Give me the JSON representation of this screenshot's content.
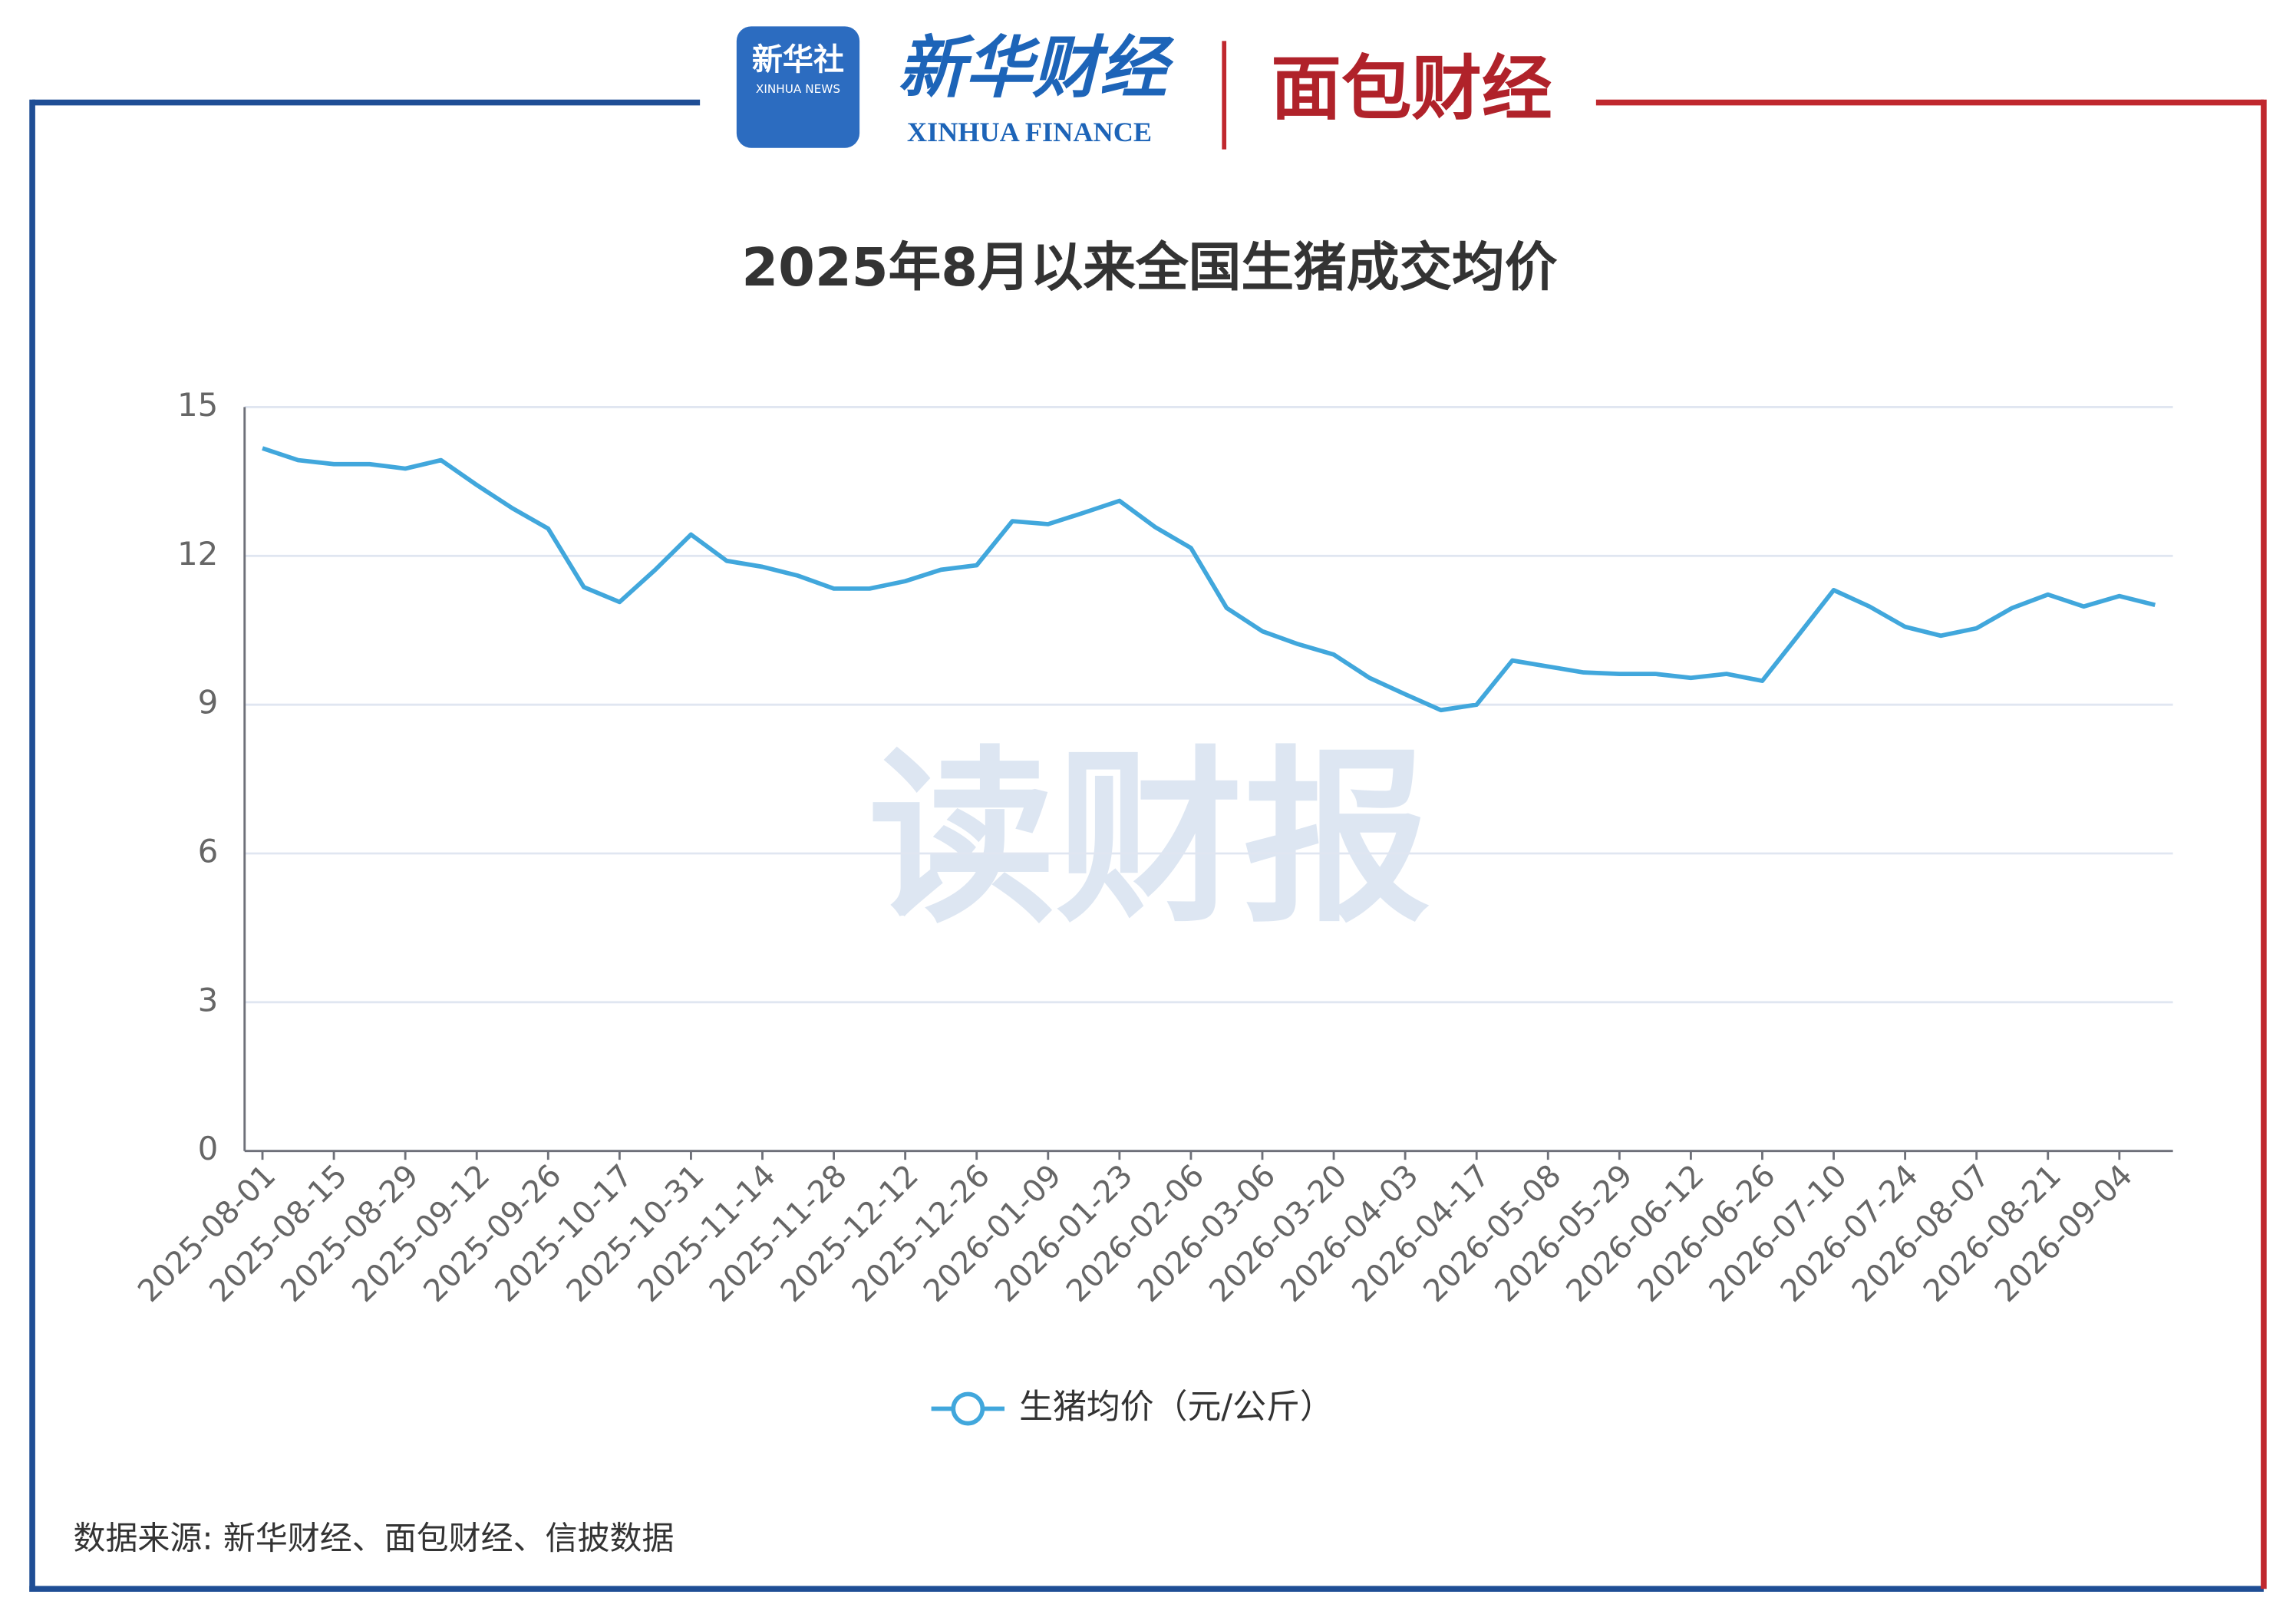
{
  "header": {
    "logo_badge": "新华社",
    "logo_badge_en": "XINHUA NEWS",
    "logo_main": "新华财经",
    "logo_main_en": "XINHUA FINANCE",
    "logo_partner": "面包财经"
  },
  "watermark": "读财报",
  "source": "数据来源: 新华财经、面包财经、信披数据",
  "chart_data": {
    "type": "line",
    "title": "2025年8月以来全国生猪成交均价",
    "categories": [
      "2025-08-01",
      null,
      "2025-08-15",
      null,
      "2025-08-29",
      null,
      "2025-09-12",
      null,
      "2025-09-26",
      null,
      "2025-10-17",
      null,
      "2025-10-31",
      null,
      "2025-11-14",
      null,
      "2025-11-28",
      null,
      "2025-12-12",
      null,
      "2025-12-26",
      null,
      "2026-01-09",
      null,
      "2026-01-23",
      null,
      "2026-02-06",
      null,
      "2026-03-06",
      null,
      "2026-03-20",
      null,
      "2026-04-03",
      null,
      "2026-04-17",
      null,
      "2026-05-08",
      null,
      "2026-05-29",
      null,
      "2026-06-12",
      null,
      "2026-06-26",
      null,
      "2026-07-10",
      null,
      "2026-07-24",
      null,
      "2026-08-07",
      null,
      "2026-08-21",
      null,
      "2026-09-04",
      null
    ],
    "series": [
      {
        "name": "生猪均价（元/公斤）",
        "color": "#41a7dc",
        "values": [
          14.17,
          13.93,
          13.85,
          13.85,
          13.76,
          13.93,
          13.43,
          12.96,
          12.55,
          11.37,
          11.07,
          11.72,
          12.43,
          11.9,
          11.78,
          11.6,
          11.34,
          11.34,
          11.49,
          11.72,
          11.81,
          12.7,
          12.64,
          12.87,
          13.11,
          12.58,
          12.16,
          10.95,
          10.48,
          10.22,
          10.01,
          9.54,
          9.21,
          8.89,
          9.0,
          9.89,
          9.77,
          9.65,
          9.62,
          9.62,
          9.54,
          9.62,
          9.48,
          10.39,
          11.31,
          10.98,
          10.57,
          10.39,
          10.54,
          10.95,
          11.22,
          10.98,
          11.19,
          11.01
        ]
      }
    ],
    "ylim": [
      0,
      15
    ],
    "yticks": [
      0,
      3,
      6,
      9,
      12,
      15
    ],
    "grid": true,
    "legend": "bottom"
  }
}
